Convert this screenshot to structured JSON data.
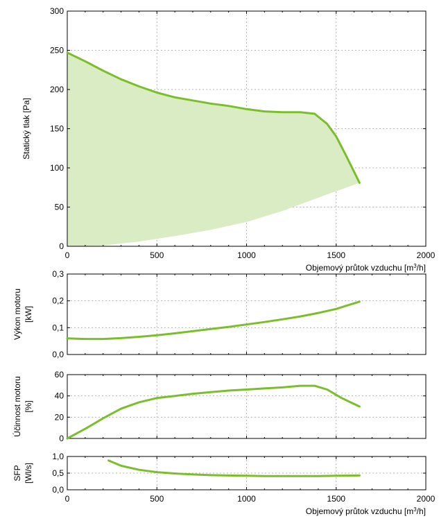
{
  "colors": {
    "curve": "#7abf2a",
    "area": "#d9ecc4"
  },
  "chart_data": [
    {
      "type": "area",
      "ylabel": "Statický tlak [Pa]",
      "xlabel_text": "Objemový průtok vzduchu [m",
      "xlabel_sup": "3",
      "xlabel_tail": "/h]",
      "xlim": [
        0,
        2000
      ],
      "ylim": [
        0,
        300
      ],
      "x_ticks": [
        "0",
        "500",
        "1000",
        "1500",
        "2000"
      ],
      "y_ticks": [
        "0",
        "50",
        "100",
        "150",
        "200",
        "250",
        "300"
      ],
      "grid": true,
      "series": [
        {
          "points": [
            [
              0,
              247
            ],
            [
              100,
              236
            ],
            [
              200,
              224
            ],
            [
              300,
              213
            ],
            [
              400,
              204
            ],
            [
              500,
              196
            ],
            [
              600,
              190
            ],
            [
              700,
              186
            ],
            [
              800,
              182
            ],
            [
              900,
              179
            ],
            [
              1000,
              175
            ],
            [
              1100,
              172
            ],
            [
              1200,
              171
            ],
            [
              1300,
              171
            ],
            [
              1380,
              169
            ],
            [
              1450,
              156
            ],
            [
              1500,
              140
            ],
            [
              1550,
              118
            ],
            [
              1600,
              95
            ],
            [
              1630,
              81
            ]
          ]
        }
      ],
      "lower_bound": [
        [
          0,
          0
        ],
        [
          200,
          1
        ],
        [
          400,
          6
        ],
        [
          600,
          13
        ],
        [
          800,
          21
        ],
        [
          1000,
          31
        ],
        [
          1200,
          45
        ],
        [
          1400,
          62
        ],
        [
          1630,
          81
        ]
      ]
    },
    {
      "type": "line",
      "ylabel_line1": "Výkon motoru",
      "ylabel_line2": "[kW]",
      "xlim": [
        0,
        2000
      ],
      "ylim": [
        0,
        0.3
      ],
      "y_ticks": [
        "0,0",
        "0,1",
        "0,2",
        "0,3"
      ],
      "grid": true,
      "series": [
        {
          "points": [
            [
              0,
              0.06
            ],
            [
              100,
              0.058
            ],
            [
              200,
              0.058
            ],
            [
              300,
              0.061
            ],
            [
              400,
              0.066
            ],
            [
              500,
              0.072
            ],
            [
              600,
              0.079
            ],
            [
              700,
              0.087
            ],
            [
              800,
              0.095
            ],
            [
              900,
              0.103
            ],
            [
              1000,
              0.112
            ],
            [
              1100,
              0.121
            ],
            [
              1200,
              0.131
            ],
            [
              1300,
              0.142
            ],
            [
              1400,
              0.155
            ],
            [
              1500,
              0.17
            ],
            [
              1630,
              0.197
            ]
          ]
        }
      ]
    },
    {
      "type": "line",
      "ylabel_line1": "Účinnost motoru",
      "ylabel_line2": "[%]",
      "xlim": [
        0,
        2000
      ],
      "ylim": [
        0,
        60
      ],
      "y_ticks": [
        "0",
        "20",
        "40",
        "60"
      ],
      "grid": true,
      "series": [
        {
          "points": [
            [
              0,
              0
            ],
            [
              100,
              9
            ],
            [
              200,
              19
            ],
            [
              300,
              28
            ],
            [
              400,
              34
            ],
            [
              500,
              38
            ],
            [
              600,
              40
            ],
            [
              700,
              42
            ],
            [
              800,
              43.5
            ],
            [
              900,
              45
            ],
            [
              1000,
              46
            ],
            [
              1100,
              47
            ],
            [
              1200,
              48
            ],
            [
              1300,
              49.5
            ],
            [
              1380,
              49.5
            ],
            [
              1450,
              46
            ],
            [
              1530,
              38
            ],
            [
              1630,
              30
            ]
          ]
        }
      ]
    },
    {
      "type": "line",
      "ylabel_line1": "SFP",
      "ylabel_line2": "[Wl/s]",
      "xlabel_text": "Objemový průtok vzduchu [m",
      "xlabel_sup": "3",
      "xlabel_tail": "/h]",
      "xlim": [
        0,
        2000
      ],
      "ylim": [
        0,
        1.0
      ],
      "x_ticks": [
        "0",
        "500",
        "1000",
        "1500",
        "2000"
      ],
      "y_ticks": [
        "0,0",
        "0,5",
        "1,0"
      ],
      "grid": true,
      "series": [
        {
          "points": [
            [
              230,
              0.88
            ],
            [
              300,
              0.72
            ],
            [
              400,
              0.6
            ],
            [
              500,
              0.53
            ],
            [
              600,
              0.49
            ],
            [
              700,
              0.46
            ],
            [
              800,
              0.44
            ],
            [
              900,
              0.43
            ],
            [
              1000,
              0.42
            ],
            [
              1100,
              0.41
            ],
            [
              1200,
              0.41
            ],
            [
              1300,
              0.41
            ],
            [
              1400,
              0.41
            ],
            [
              1500,
              0.42
            ],
            [
              1630,
              0.43
            ]
          ]
        }
      ]
    }
  ]
}
